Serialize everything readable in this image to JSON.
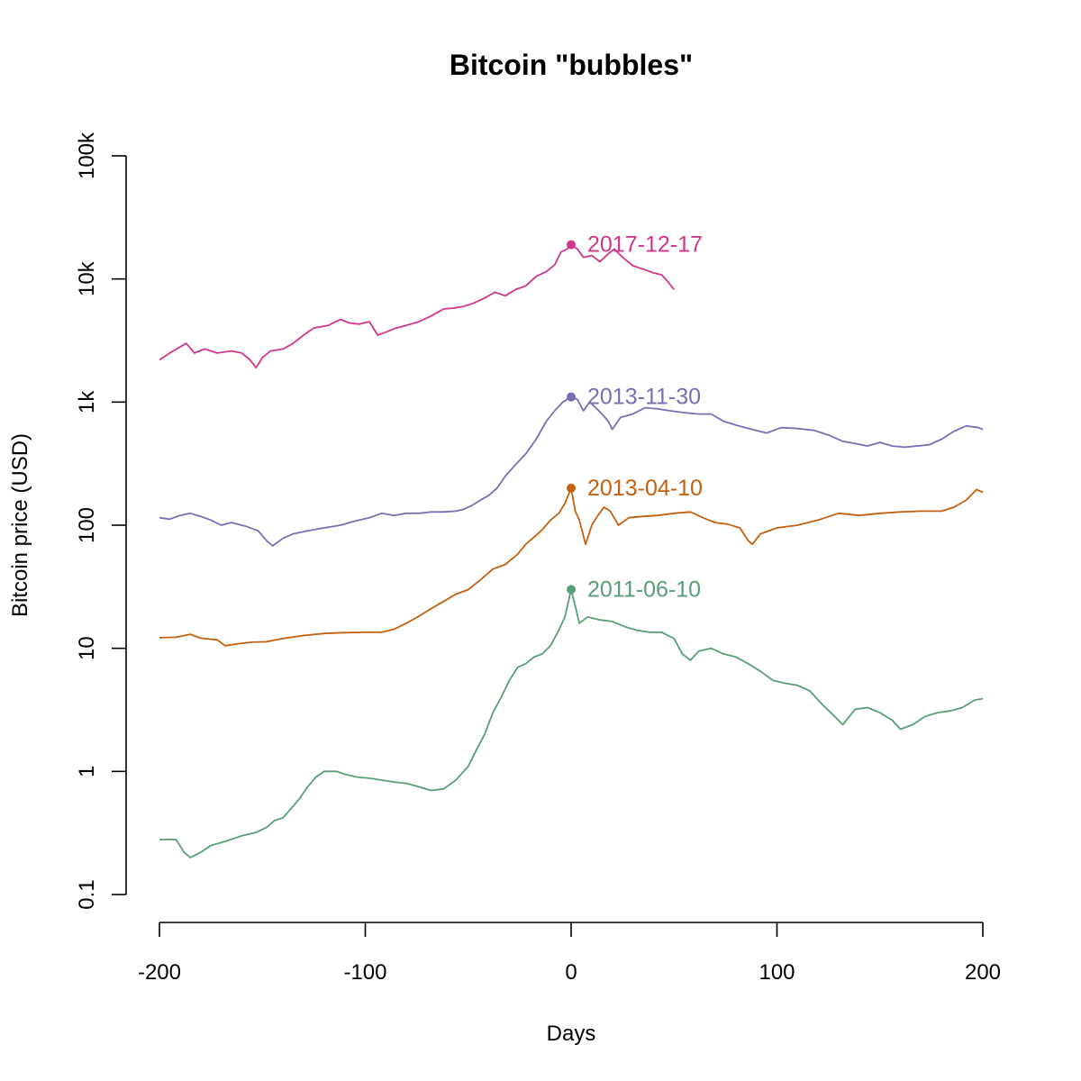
{
  "chart_data": {
    "type": "line",
    "title": "Bitcoin \"bubbles\"",
    "xlabel": "Days",
    "ylabel": "Bitcoin price (USD)",
    "xlim": [
      -200,
      200
    ],
    "ylim": [
      0.1,
      100000
    ],
    "y_scale": "log",
    "grid": false,
    "x_ticks": [
      {
        "value": -200,
        "label": "-200"
      },
      {
        "value": -100,
        "label": "-100"
      },
      {
        "value": 0,
        "label": "0"
      },
      {
        "value": 100,
        "label": "100"
      },
      {
        "value": 200,
        "label": "200"
      }
    ],
    "y_ticks": [
      {
        "value": 0.1,
        "label": "0.1"
      },
      {
        "value": 1,
        "label": "1"
      },
      {
        "value": 10,
        "label": "10"
      },
      {
        "value": 100,
        "label": "100"
      },
      {
        "value": 1000,
        "label": "1k"
      },
      {
        "value": 10000,
        "label": "10k"
      },
      {
        "value": 100000,
        "label": "100k"
      }
    ],
    "series": [
      {
        "label": "2017-12-17",
        "color": "#d0368a",
        "peak": [
          0,
          19000
        ],
        "points": [
          [
            -200,
            2200
          ],
          [
            -195,
            2500
          ],
          [
            -190,
            2800
          ],
          [
            -187,
            3000
          ],
          [
            -183,
            2500
          ],
          [
            -178,
            2700
          ],
          [
            -172,
            2500
          ],
          [
            -165,
            2600
          ],
          [
            -160,
            2500
          ],
          [
            -156,
            2200
          ],
          [
            -153,
            1900
          ],
          [
            -150,
            2300
          ],
          [
            -146,
            2600
          ],
          [
            -140,
            2700
          ],
          [
            -135,
            3000
          ],
          [
            -130,
            3500
          ],
          [
            -125,
            4000
          ],
          [
            -118,
            4200
          ],
          [
            -112,
            4700
          ],
          [
            -108,
            4400
          ],
          [
            -103,
            4300
          ],
          [
            -98,
            4500
          ],
          [
            -94,
            3500
          ],
          [
            -90,
            3700
          ],
          [
            -85,
            4000
          ],
          [
            -80,
            4200
          ],
          [
            -74,
            4500
          ],
          [
            -68,
            5000
          ],
          [
            -62,
            5700
          ],
          [
            -57,
            5800
          ],
          [
            -52,
            6000
          ],
          [
            -47,
            6400
          ],
          [
            -42,
            7000
          ],
          [
            -37,
            7800
          ],
          [
            -32,
            7300
          ],
          [
            -27,
            8200
          ],
          [
            -22,
            8800
          ],
          [
            -17,
            10500
          ],
          [
            -12,
            11500
          ],
          [
            -8,
            13000
          ],
          [
            -5,
            16500
          ],
          [
            -2,
            17500
          ],
          [
            0,
            19000
          ],
          [
            3,
            17500
          ],
          [
            6,
            15000
          ],
          [
            10,
            15500
          ],
          [
            14,
            13800
          ],
          [
            18,
            16000
          ],
          [
            21,
            17500
          ],
          [
            25,
            15000
          ],
          [
            30,
            12800
          ],
          [
            35,
            12000
          ],
          [
            40,
            11200
          ],
          [
            44,
            10800
          ],
          [
            47,
            9500
          ],
          [
            50,
            8200
          ]
        ]
      },
      {
        "label": "2013-11-30",
        "color": "#7570b3",
        "peak": [
          0,
          1100
        ],
        "points": [
          [
            -200,
            115
          ],
          [
            -195,
            112
          ],
          [
            -190,
            120
          ],
          [
            -185,
            125
          ],
          [
            -180,
            118
          ],
          [
            -175,
            110
          ],
          [
            -170,
            100
          ],
          [
            -165,
            105
          ],
          [
            -158,
            98
          ],
          [
            -152,
            90
          ],
          [
            -148,
            75
          ],
          [
            -145,
            68
          ],
          [
            -140,
            78
          ],
          [
            -135,
            85
          ],
          [
            -128,
            90
          ],
          [
            -120,
            95
          ],
          [
            -112,
            100
          ],
          [
            -105,
            108
          ],
          [
            -98,
            115
          ],
          [
            -92,
            125
          ],
          [
            -86,
            120
          ],
          [
            -80,
            125
          ],
          [
            -74,
            125
          ],
          [
            -68,
            128
          ],
          [
            -62,
            128
          ],
          [
            -56,
            130
          ],
          [
            -52,
            135
          ],
          [
            -48,
            145
          ],
          [
            -44,
            160
          ],
          [
            -40,
            175
          ],
          [
            -36,
            200
          ],
          [
            -32,
            250
          ],
          [
            -27,
            310
          ],
          [
            -22,
            380
          ],
          [
            -17,
            500
          ],
          [
            -12,
            700
          ],
          [
            -8,
            850
          ],
          [
            -4,
            1000
          ],
          [
            0,
            1100
          ],
          [
            3,
            1050
          ],
          [
            6,
            850
          ],
          [
            9,
            1000
          ],
          [
            12,
            900
          ],
          [
            15,
            800
          ],
          [
            18,
            700
          ],
          [
            20,
            600
          ],
          [
            24,
            750
          ],
          [
            30,
            800
          ],
          [
            36,
            900
          ],
          [
            42,
            880
          ],
          [
            48,
            850
          ],
          [
            55,
            820
          ],
          [
            62,
            800
          ],
          [
            68,
            800
          ],
          [
            74,
            700
          ],
          [
            80,
            650
          ],
          [
            88,
            600
          ],
          [
            95,
            560
          ],
          [
            102,
            620
          ],
          [
            110,
            610
          ],
          [
            118,
            590
          ],
          [
            125,
            540
          ],
          [
            132,
            480
          ],
          [
            138,
            460
          ],
          [
            144,
            440
          ],
          [
            150,
            470
          ],
          [
            156,
            440
          ],
          [
            162,
            430
          ],
          [
            168,
            440
          ],
          [
            174,
            450
          ],
          [
            180,
            500
          ],
          [
            186,
            580
          ],
          [
            192,
            640
          ],
          [
            198,
            620
          ],
          [
            200,
            600
          ]
        ]
      },
      {
        "label": "2013-04-10",
        "color": "#c4600f",
        "peak": [
          0,
          200
        ],
        "points": [
          [
            -200,
            12.2
          ],
          [
            -192,
            12.3
          ],
          [
            -185,
            13.0
          ],
          [
            -180,
            12.1
          ],
          [
            -172,
            11.7
          ],
          [
            -168,
            10.5
          ],
          [
            -162,
            10.9
          ],
          [
            -155,
            11.2
          ],
          [
            -148,
            11.3
          ],
          [
            -140,
            12.0
          ],
          [
            -130,
            12.7
          ],
          [
            -120,
            13.2
          ],
          [
            -110,
            13.4
          ],
          [
            -100,
            13.5
          ],
          [
            -92,
            13.5
          ],
          [
            -86,
            14.3
          ],
          [
            -80,
            16.0
          ],
          [
            -74,
            18.2
          ],
          [
            -68,
            21.0
          ],
          [
            -62,
            24.0
          ],
          [
            -56,
            27.5
          ],
          [
            -50,
            30.0
          ],
          [
            -44,
            36.0
          ],
          [
            -38,
            44.0
          ],
          [
            -32,
            48.0
          ],
          [
            -26,
            58.0
          ],
          [
            -22,
            70.0
          ],
          [
            -18,
            80.0
          ],
          [
            -14,
            92.0
          ],
          [
            -10,
            110.0
          ],
          [
            -6,
            125.0
          ],
          [
            -3,
            150.0
          ],
          [
            0,
            200.0
          ],
          [
            2,
            130.0
          ],
          [
            4,
            110.0
          ],
          [
            7,
            70.0
          ],
          [
            10,
            100.0
          ],
          [
            13,
            120.0
          ],
          [
            16,
            140.0
          ],
          [
            19,
            130.0
          ],
          [
            23,
            100.0
          ],
          [
            28,
            115.0
          ],
          [
            35,
            118.0
          ],
          [
            42,
            120.0
          ],
          [
            50,
            125.0
          ],
          [
            58,
            128.0
          ],
          [
            64,
            115.0
          ],
          [
            70,
            105.0
          ],
          [
            76,
            102.0
          ],
          [
            82,
            95.0
          ],
          [
            86,
            75.0
          ],
          [
            88,
            70.0
          ],
          [
            92,
            85.0
          ],
          [
            100,
            95.0
          ],
          [
            110,
            100.0
          ],
          [
            120,
            110.0
          ],
          [
            130,
            125.0
          ],
          [
            140,
            120.0
          ],
          [
            150,
            125.0
          ],
          [
            160,
            128.0
          ],
          [
            170,
            130.0
          ],
          [
            180,
            130.0
          ],
          [
            186,
            140.0
          ],
          [
            192,
            160.0
          ],
          [
            197,
            195.0
          ],
          [
            200,
            185.0
          ]
        ]
      },
      {
        "label": "2011-06-10",
        "color": "#5a9e75",
        "peak": [
          0,
          30
        ],
        "points": [
          [
            -200,
            0.28
          ],
          [
            -192,
            0.28
          ],
          [
            -188,
            0.22
          ],
          [
            -185,
            0.2
          ],
          [
            -180,
            0.22
          ],
          [
            -175,
            0.25
          ],
          [
            -168,
            0.27
          ],
          [
            -160,
            0.3
          ],
          [
            -153,
            0.32
          ],
          [
            -148,
            0.35
          ],
          [
            -144,
            0.4
          ],
          [
            -140,
            0.42
          ],
          [
            -136,
            0.5
          ],
          [
            -132,
            0.6
          ],
          [
            -128,
            0.75
          ],
          [
            -124,
            0.9
          ],
          [
            -120,
            1.0
          ],
          [
            -114,
            1.0
          ],
          [
            -110,
            0.95
          ],
          [
            -104,
            0.9
          ],
          [
            -98,
            0.88
          ],
          [
            -92,
            0.85
          ],
          [
            -86,
            0.82
          ],
          [
            -80,
            0.8
          ],
          [
            -74,
            0.75
          ],
          [
            -68,
            0.7
          ],
          [
            -62,
            0.72
          ],
          [
            -56,
            0.85
          ],
          [
            -50,
            1.1
          ],
          [
            -46,
            1.5
          ],
          [
            -42,
            2.0
          ],
          [
            -38,
            3.0
          ],
          [
            -34,
            4.0
          ],
          [
            -30,
            5.5
          ],
          [
            -26,
            7.0
          ],
          [
            -22,
            7.5
          ],
          [
            -18,
            8.5
          ],
          [
            -14,
            9.0
          ],
          [
            -10,
            10.5
          ],
          [
            -6,
            14.0
          ],
          [
            -3,
            18.0
          ],
          [
            0,
            30.0
          ],
          [
            2,
            22.0
          ],
          [
            4,
            16.0
          ],
          [
            8,
            18.0
          ],
          [
            14,
            17.0
          ],
          [
            20,
            16.5
          ],
          [
            26,
            15.0
          ],
          [
            32,
            14.0
          ],
          [
            38,
            13.5
          ],
          [
            44,
            13.5
          ],
          [
            50,
            12.0
          ],
          [
            54,
            9.0
          ],
          [
            58,
            8.0
          ],
          [
            62,
            9.5
          ],
          [
            68,
            10.0
          ],
          [
            74,
            9.0
          ],
          [
            80,
            8.5
          ],
          [
            86,
            7.5
          ],
          [
            92,
            6.5
          ],
          [
            98,
            5.5
          ],
          [
            104,
            5.2
          ],
          [
            110,
            5.0
          ],
          [
            116,
            4.5
          ],
          [
            122,
            3.5
          ],
          [
            128,
            2.8
          ],
          [
            132,
            2.4
          ],
          [
            138,
            3.2
          ],
          [
            144,
            3.3
          ],
          [
            150,
            3.0
          ],
          [
            156,
            2.6
          ],
          [
            160,
            2.2
          ],
          [
            166,
            2.4
          ],
          [
            172,
            2.8
          ],
          [
            178,
            3.0
          ],
          [
            184,
            3.1
          ],
          [
            190,
            3.3
          ],
          [
            196,
            3.8
          ],
          [
            200,
            3.9
          ]
        ]
      }
    ]
  }
}
